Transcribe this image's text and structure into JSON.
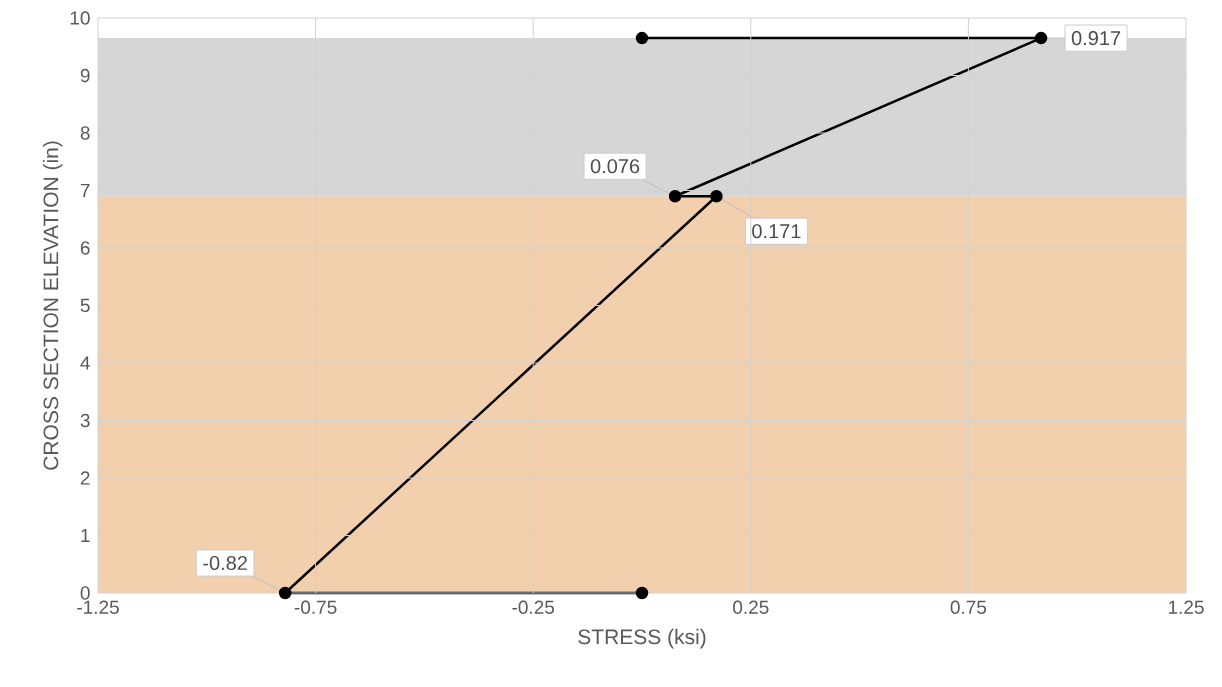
{
  "chart_data": {
    "type": "line",
    "xlabel": "STRESS (ksi)",
    "ylabel": "CROSS SECTION ELEVATION (in)",
    "x": [
      0,
      -0.82,
      0.171,
      0.076,
      0.917,
      0
    ],
    "values": [
      0,
      0,
      6.9,
      6.9,
      9.65,
      9.65
    ],
    "annotations": [
      {
        "text": "-0.82",
        "x": -0.82,
        "y": 0
      },
      {
        "text": "0.171",
        "x": 0.171,
        "y": 6.9
      },
      {
        "text": "0.076",
        "x": 0.076,
        "y": 6.9
      },
      {
        "text": "0.917",
        "x": 0.917,
        "y": 9.65
      }
    ],
    "color": "#000000",
    "marker": "circle",
    "line_style": "solid",
    "grid": true,
    "xlim": [
      -1.25,
      1.25
    ],
    "xticks": [
      -1.25,
      -0.75,
      -0.25,
      0.25,
      0.75,
      1.25
    ],
    "ylim": [
      0,
      10
    ],
    "yticks": [
      0,
      1,
      2,
      3,
      4,
      5,
      6,
      7,
      8,
      9,
      10
    ],
    "bands": [
      {
        "axis": "y",
        "from": 0,
        "to": 6.9,
        "color": "#f2cfad"
      },
      {
        "axis": "y",
        "from": 6.9,
        "to": 9.65,
        "color": "#d6d6d6"
      }
    ]
  }
}
